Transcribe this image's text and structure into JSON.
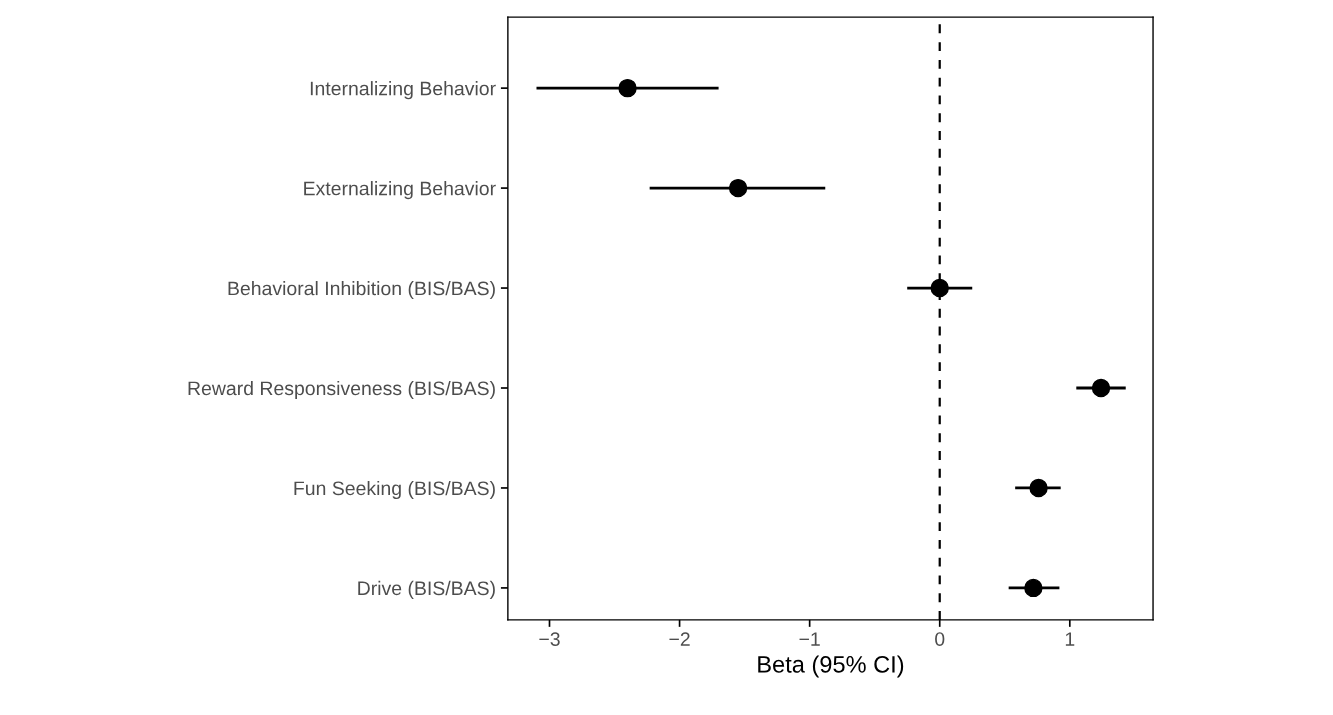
{
  "chart_data": {
    "type": "scatter",
    "orientation": "horizontal",
    "xlabel": "Beta (95% CI)",
    "categories": [
      "Internalizing Behavior",
      "Externalizing Behavior",
      "Behavioral Inhibition (BIS/BAS)",
      "Reward Responsiveness (BIS/BAS)",
      "Fun Seeking (BIS/BAS)",
      "Drive (BIS/BAS)"
    ],
    "values": [
      -2.4,
      -1.55,
      0.0,
      1.24,
      0.76,
      0.72
    ],
    "errors": [
      [
        -3.1,
        -1.7
      ],
      [
        -2.23,
        -0.88
      ],
      [
        -0.25,
        0.25
      ],
      [
        1.05,
        1.43
      ],
      [
        0.58,
        0.93
      ],
      [
        0.53,
        0.92
      ]
    ],
    "color": "#000000",
    "marker": "circle",
    "xlim": [
      -3.32,
      1.64
    ],
    "xticks": [
      -3,
      -2,
      -1,
      0,
      1
    ],
    "ref_lines": [
      {
        "axis": "x",
        "value": 0,
        "color": "#000000",
        "line_style": "dashed"
      }
    ],
    "grid": false
  }
}
